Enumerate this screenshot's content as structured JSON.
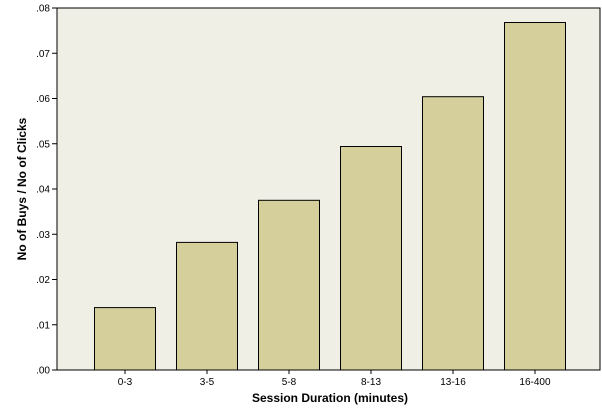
{
  "chart_data": {
    "type": "bar",
    "categories": [
      "0-3",
      "3-5",
      "5-8",
      "8-13",
      "13-16",
      "16-400"
    ],
    "values": [
      0.0138,
      0.0282,
      0.0375,
      0.0494,
      0.0604,
      0.0768
    ],
    "xlabel": "Session Duration (minutes)",
    "ylabel": "No of Buys / No of Clicks",
    "ylim": [
      0,
      0.08
    ],
    "yticks": [
      0,
      0.01,
      0.02,
      0.03,
      0.04,
      0.05,
      0.06,
      0.07,
      0.08
    ],
    "ytick_labels": [
      ".00",
      ".01",
      ".02",
      ".03",
      ".04",
      ".05",
      ".06",
      ".07",
      ".08"
    ],
    "grid": false,
    "colors": {
      "plot_background": "#f0efe6",
      "bar_fill": "#d5cf9c",
      "bar_stroke": "#000000"
    }
  }
}
